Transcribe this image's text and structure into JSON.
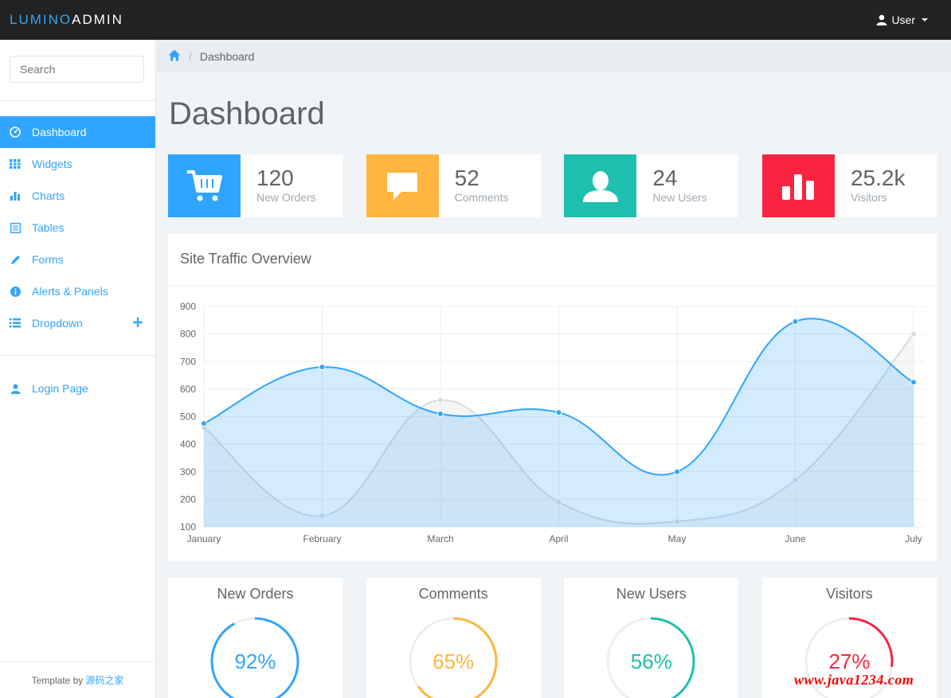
{
  "brand": {
    "part1": "LUMINO",
    "part2": "ADMIN"
  },
  "navbar": {
    "user_label": "User"
  },
  "sidebar": {
    "search_placeholder": "Search",
    "items": [
      {
        "label": "Dashboard",
        "icon": "dashboard-icon",
        "active": true
      },
      {
        "label": "Widgets",
        "icon": "grid-icon"
      },
      {
        "label": "Charts",
        "icon": "bar-chart-icon"
      },
      {
        "label": "Tables",
        "icon": "table-icon"
      },
      {
        "label": "Forms",
        "icon": "pencil-icon"
      },
      {
        "label": "Alerts & Panels",
        "icon": "info-icon"
      },
      {
        "label": "Dropdown",
        "icon": "list-icon"
      }
    ],
    "login_label": "Login Page",
    "credit_prefix": "Template by",
    "credit_link": "源码之家"
  },
  "breadcrumb": {
    "current": "Dashboard"
  },
  "page_title": "Dashboard",
  "stats": [
    {
      "value": "120",
      "label": "New Orders",
      "color": "#30a5ff",
      "icon": "cart-icon"
    },
    {
      "value": "52",
      "label": "Comments",
      "color": "#ffb53e",
      "icon": "comment-icon"
    },
    {
      "value": "24",
      "label": "New Users",
      "color": "#1ebfae",
      "icon": "user-icon"
    },
    {
      "value": "25.2k",
      "label": "Visitors",
      "color": "#f9243f",
      "icon": "bar-chart-icon"
    }
  ],
  "panel": {
    "title": "Site Traffic Overview"
  },
  "chart_data": {
    "type": "area",
    "title": "Site Traffic Overview",
    "categories": [
      "January",
      "February",
      "March",
      "April",
      "May",
      "June",
      "July"
    ],
    "ylim": [
      100,
      900
    ],
    "yticks": [
      100,
      200,
      300,
      400,
      500,
      600,
      700,
      800,
      900
    ],
    "grid": true,
    "series": [
      {
        "values": [
          460,
          140,
          560,
          190,
          120,
          270,
          800
        ],
        "color": "#d8dcdf"
      },
      {
        "values": [
          475,
          680,
          510,
          515,
          300,
          845,
          625
        ],
        "color": "#30a5ff"
      }
    ]
  },
  "gauges": [
    {
      "title": "New Orders",
      "percent": 92,
      "label": "92%",
      "color": "#30a5ff"
    },
    {
      "title": "Comments",
      "percent": 65,
      "label": "65%",
      "color": "#ffb53e"
    },
    {
      "title": "New Users",
      "percent": 56,
      "label": "56%",
      "color": "#1ebfae"
    },
    {
      "title": "Visitors",
      "percent": 27,
      "label": "27%",
      "color": "#f9243f"
    }
  ],
  "watermark": "www.java1234.com"
}
